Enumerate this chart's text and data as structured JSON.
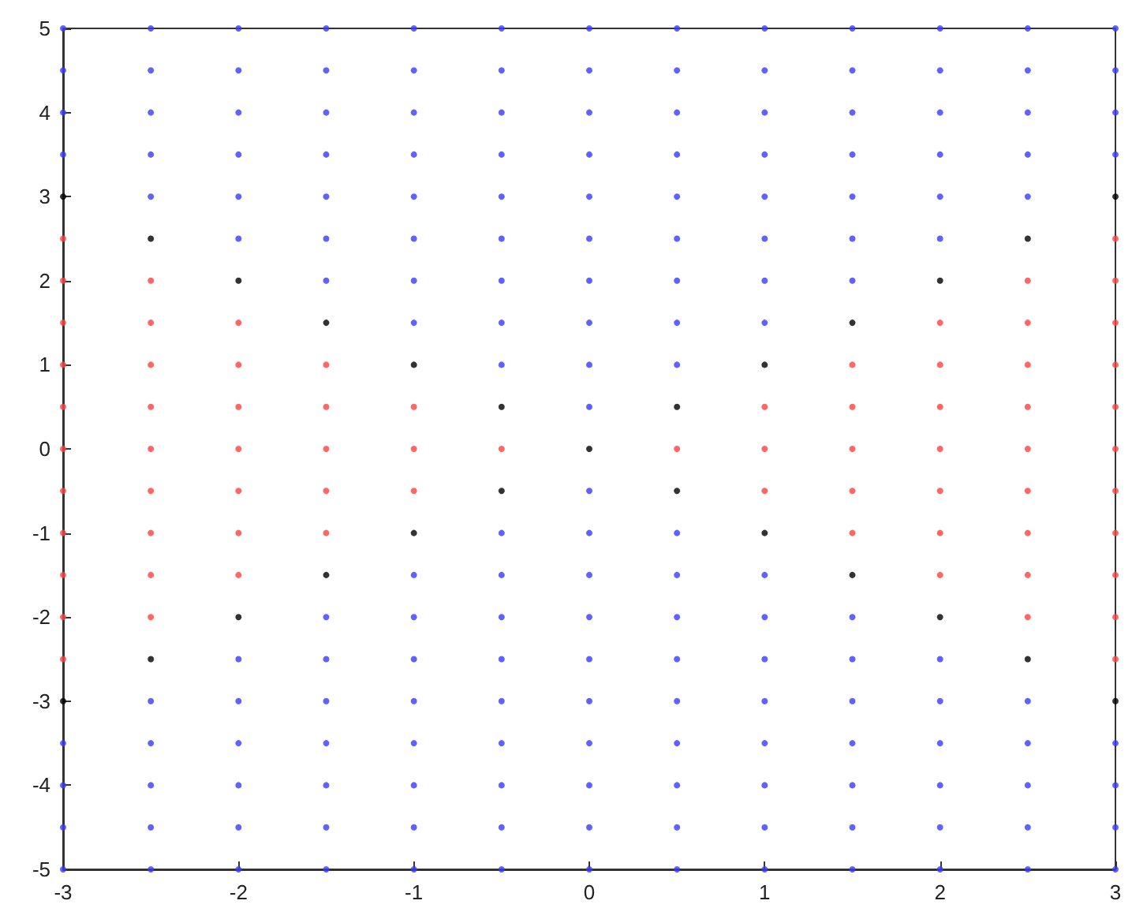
{
  "chart_data": {
    "type": "scatter",
    "marker": "circle",
    "grid": false,
    "xlim": [
      -3,
      3
    ],
    "xticks": [
      -3,
      -2,
      -1,
      0,
      1,
      2,
      3
    ],
    "ylim": [
      -5,
      5
    ],
    "yticks": [
      -5,
      -4,
      -3,
      -2,
      -1,
      0,
      1,
      2,
      3,
      4,
      5
    ],
    "series": [
      {
        "color": "#3a3aff",
        "x": [
          -3,
          -3,
          -3,
          -3,
          -3,
          -3,
          -3,
          -3,
          -2.5,
          -2.5,
          -2.5,
          -2.5,
          -2.5,
          -2.5,
          -2.5,
          -2.5,
          -2.5,
          -2.5,
          -2,
          -2,
          -2,
          -2,
          -2,
          -2,
          -2,
          -2,
          -2,
          -2,
          -2,
          -2,
          -1.5,
          -1.5,
          -1.5,
          -1.5,
          -1.5,
          -1.5,
          -1.5,
          -1.5,
          -1.5,
          -1.5,
          -1.5,
          -1.5,
          -1.5,
          -1.5,
          -1,
          -1,
          -1,
          -1,
          -1,
          -1,
          -1,
          -1,
          -1,
          -1,
          -1,
          -1,
          -1,
          -1,
          -1,
          -1,
          -0.5,
          -0.5,
          -0.5,
          -0.5,
          -0.5,
          -0.5,
          -0.5,
          -0.5,
          -0.5,
          -0.5,
          -0.5,
          -0.5,
          -0.5,
          -0.5,
          -0.5,
          -0.5,
          -0.5,
          -0.5,
          0,
          0,
          0,
          0,
          0,
          0,
          0,
          0,
          0,
          0,
          0,
          0,
          0,
          0,
          0,
          0,
          0,
          0,
          0,
          0,
          0.5,
          0.5,
          0.5,
          0.5,
          0.5,
          0.5,
          0.5,
          0.5,
          0.5,
          0.5,
          0.5,
          0.5,
          0.5,
          0.5,
          0.5,
          0.5,
          0.5,
          0.5,
          1,
          1,
          1,
          1,
          1,
          1,
          1,
          1,
          1,
          1,
          1,
          1,
          1,
          1,
          1,
          1,
          1.5,
          1.5,
          1.5,
          1.5,
          1.5,
          1.5,
          1.5,
          1.5,
          1.5,
          1.5,
          1.5,
          1.5,
          1.5,
          1.5,
          2,
          2,
          2,
          2,
          2,
          2,
          2,
          2,
          2,
          2,
          2,
          2,
          2.5,
          2.5,
          2.5,
          2.5,
          2.5,
          2.5,
          2.5,
          2.5,
          2.5,
          2.5,
          3,
          3,
          3,
          3,
          3,
          3,
          3,
          3
        ],
        "values": [
          -5,
          -4.5,
          -4,
          -3.5,
          3.5,
          4,
          4.5,
          5,
          -5,
          -4.5,
          -4,
          -3.5,
          -3,
          3,
          3.5,
          4,
          4.5,
          5,
          -5,
          -4.5,
          -4,
          -3.5,
          -3,
          -2.5,
          2.5,
          3,
          3.5,
          4,
          4.5,
          5,
          -5,
          -4.5,
          -4,
          -3.5,
          -3,
          -2.5,
          -2,
          2,
          2.5,
          3,
          3.5,
          4,
          4.5,
          5,
          -5,
          -4.5,
          -4,
          -3.5,
          -3,
          -2.5,
          -2,
          -1.5,
          1.5,
          2,
          2.5,
          3,
          3.5,
          4,
          4.5,
          5,
          -5,
          -4.5,
          -4,
          -3.5,
          -3,
          -2.5,
          -2,
          -1.5,
          -1,
          1,
          1.5,
          2,
          2.5,
          3,
          3.5,
          4,
          4.5,
          5,
          -5,
          -4.5,
          -4,
          -3.5,
          -3,
          -2.5,
          -2,
          -1.5,
          -1,
          -0.5,
          0.5,
          1,
          1.5,
          2,
          2.5,
          3,
          3.5,
          4,
          4.5,
          5,
          -5,
          -4.5,
          -4,
          -3.5,
          -3,
          -2.5,
          -2,
          -1.5,
          -1,
          1,
          1.5,
          2,
          2.5,
          3,
          3.5,
          4,
          4.5,
          5,
          -5,
          -4.5,
          -4,
          -3.5,
          -3,
          -2.5,
          -2,
          -1.5,
          1.5,
          2,
          2.5,
          3,
          3.5,
          4,
          4.5,
          5,
          -5,
          -4.5,
          -4,
          -3.5,
          -3,
          -2.5,
          -2,
          2,
          2.5,
          3,
          3.5,
          4,
          4.5,
          5,
          -5,
          -4.5,
          -4,
          -3.5,
          -3,
          -2.5,
          2.5,
          3,
          3.5,
          4,
          4.5,
          5,
          -5,
          -4.5,
          -4,
          -3.5,
          -3,
          3,
          3.5,
          4,
          4.5,
          5,
          -5,
          -4.5,
          -4,
          -3.5,
          3.5,
          4,
          4.5,
          5
        ]
      },
      {
        "color": "#ff4040",
        "x": [
          -3,
          -3,
          -3,
          -3,
          -3,
          -3,
          -3,
          -3,
          -3,
          -3,
          -3,
          -2.5,
          -2.5,
          -2.5,
          -2.5,
          -2.5,
          -2.5,
          -2.5,
          -2.5,
          -2.5,
          -2,
          -2,
          -2,
          -2,
          -2,
          -2,
          -2,
          -1.5,
          -1.5,
          -1.5,
          -1.5,
          -1.5,
          -1,
          -1,
          -1,
          -0.5,
          0.5,
          1,
          1,
          1,
          1.5,
          1.5,
          1.5,
          1.5,
          1.5,
          2,
          2,
          2,
          2,
          2,
          2,
          2,
          2.5,
          2.5,
          2.5,
          2.5,
          2.5,
          2.5,
          2.5,
          2.5,
          2.5,
          3,
          3,
          3,
          3,
          3,
          3,
          3,
          3,
          3,
          3,
          3
        ],
        "values": [
          -2.5,
          -2,
          -1.5,
          -1,
          -0.5,
          0,
          0.5,
          1,
          1.5,
          2,
          2.5,
          -2,
          -1.5,
          -1,
          -0.5,
          0,
          0.5,
          1,
          1.5,
          2,
          -1.5,
          -1,
          -0.5,
          0,
          0.5,
          1,
          1.5,
          -1,
          -0.5,
          0,
          0.5,
          1,
          -0.5,
          0,
          0.5,
          0,
          0,
          -0.5,
          0,
          0.5,
          -1,
          -0.5,
          0,
          0.5,
          1,
          -1.5,
          -1,
          -0.5,
          0,
          0.5,
          1,
          1.5,
          -2,
          -1.5,
          -1,
          -0.5,
          0,
          0.5,
          1,
          1.5,
          2,
          -2.5,
          -2,
          -1.5,
          -1,
          -0.5,
          0,
          0.5,
          1,
          1.5,
          2,
          2.5
        ]
      },
      {
        "color": "#000000",
        "x": [
          -3,
          -3,
          -2.5,
          -2.5,
          -2,
          -2,
          -1.5,
          -1.5,
          -1,
          -1,
          -0.5,
          -0.5,
          0,
          0.5,
          0.5,
          1,
          1,
          1.5,
          1.5,
          2,
          2,
          2.5,
          2.5,
          3,
          3
        ],
        "values": [
          -3,
          3,
          -2.5,
          2.5,
          -2,
          2,
          -1.5,
          1.5,
          -1,
          1,
          -0.5,
          0.5,
          0,
          -0.5,
          0.5,
          -1,
          1,
          -1.5,
          1.5,
          -2,
          2,
          -2.5,
          2.5,
          -3,
          3
        ]
      }
    ]
  }
}
